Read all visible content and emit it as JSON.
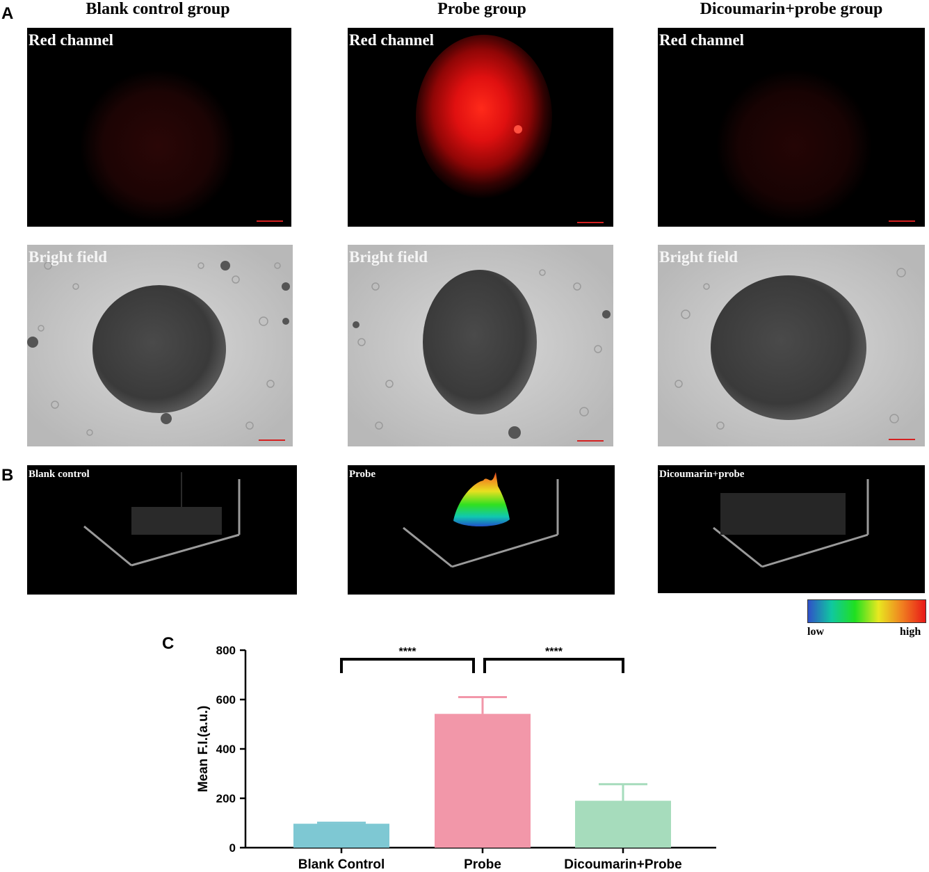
{
  "panels": {
    "a_letter": "A",
    "b_letter": "B",
    "c_letter": "C"
  },
  "groups": [
    {
      "title": "Blank control group",
      "red_label": "Red channel",
      "bright_label": "Bright field",
      "profile_label": "Blank control",
      "red_intensity": "faint"
    },
    {
      "title": "Probe group",
      "red_label": "Red channel",
      "bright_label": "Bright field",
      "profile_label": "Probe",
      "red_intensity": "bright"
    },
    {
      "title": "Dicoumarin+probe group",
      "red_label": "Red channel",
      "bright_label": "Bright field",
      "profile_label": "Dicoumarin+probe",
      "red_intensity": "faint"
    }
  ],
  "colorbar": {
    "low_label": "low",
    "high_label": "high",
    "colors": [
      "#3050c8",
      "#10c8a0",
      "#20e020",
      "#e8e820",
      "#f08020",
      "#e81818"
    ]
  },
  "colors": {
    "scalebar": "#d42020",
    "bar_blank": "#7ec8d3",
    "bar_probe": "#f297a9",
    "bar_dicoumarin": "#a6dcbc"
  },
  "chart_data": {
    "type": "bar",
    "categories": [
      "Blank Control",
      "Probe",
      "Dicoumarin+Probe"
    ],
    "values": [
      97,
      542,
      190
    ],
    "error_upper": [
      101,
      610,
      257
    ],
    "ylabel": "Mean F.I.(a.u.)",
    "ylim": [
      0,
      800
    ],
    "yticks": [
      "0",
      "200",
      "400",
      "600",
      "800"
    ],
    "significance": [
      {
        "from": 0,
        "to": 1,
        "label": "****"
      },
      {
        "from": 1,
        "to": 2,
        "label": "****"
      }
    ]
  }
}
